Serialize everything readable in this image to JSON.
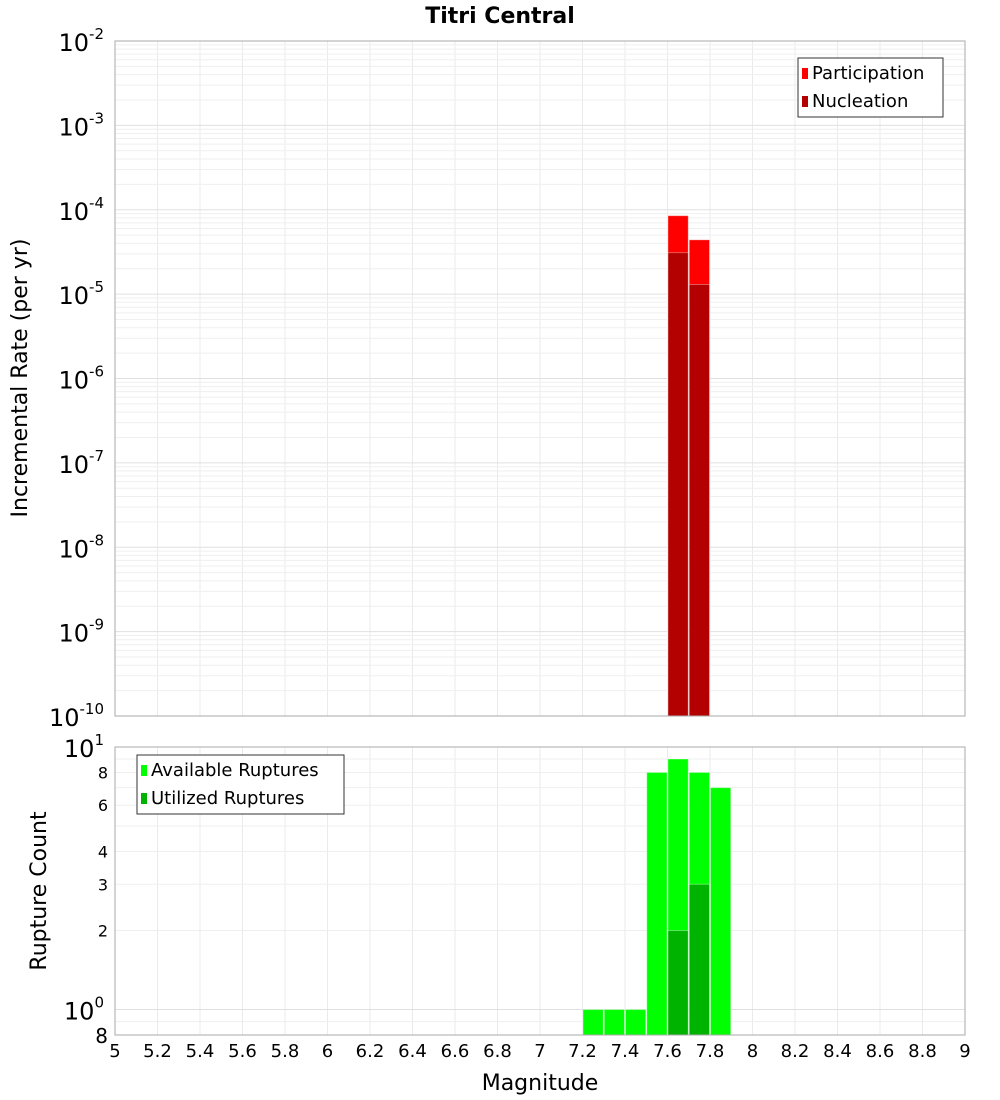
{
  "chart_data": [
    {
      "type": "bar",
      "title": "Titri Central",
      "xlabel": "",
      "ylabel": "Incremental Rate (per yr)",
      "yscale": "log",
      "xlim": [
        5,
        9
      ],
      "ylim": [
        1e-10,
        0.01
      ],
      "ytick_exponents": [
        -10,
        -9,
        -8,
        -7,
        -6,
        -5,
        -4,
        -3,
        -2
      ],
      "grid": true,
      "legend_position": "top-right",
      "bin_width": 0.1,
      "series": [
        {
          "name": "Participation",
          "color": "#ff0000",
          "x": [
            7.65,
            7.75
          ],
          "values": [
            8.5e-05,
            4.4e-05
          ]
        },
        {
          "name": "Nucleation",
          "color": "#b30000",
          "x": [
            7.65,
            7.75
          ],
          "values": [
            3.1e-05,
            1.3e-05
          ]
        }
      ]
    },
    {
      "type": "bar",
      "xlabel": "Magnitude",
      "ylabel": "Rupture Count",
      "yscale": "log",
      "xlim": [
        5,
        9
      ],
      "ylim": [
        0.8,
        10
      ],
      "xticks": [
        "5",
        "5.2",
        "5.4",
        "5.6",
        "5.8",
        "6",
        "6.2",
        "6.4",
        "6.6",
        "6.8",
        "7",
        "7.2",
        "7.4",
        "7.6",
        "7.8",
        "8",
        "8.2",
        "8.4",
        "8.6",
        "8.8",
        "9"
      ],
      "yticks_minor": [
        {
          "v": 2,
          "label": "2"
        },
        {
          "v": 3,
          "label": "3"
        },
        {
          "v": 4,
          "label": "4"
        },
        {
          "v": 6,
          "label": "6"
        },
        {
          "v": 8,
          "label": "8"
        }
      ],
      "ytick_bottom_label": "8",
      "ytick_major": [
        {
          "v": 1,
          "exp": "0"
        },
        {
          "v": 10,
          "exp": "1"
        }
      ],
      "grid": true,
      "legend_position": "top-left",
      "bin_width": 0.1,
      "series": [
        {
          "name": "Available Ruptures",
          "color": "#00ff00",
          "x": [
            7.25,
            7.35,
            7.45,
            7.55,
            7.65,
            7.75,
            7.85
          ],
          "values": [
            1,
            1,
            1,
            8,
            9,
            8,
            7
          ]
        },
        {
          "name": "Utilized Ruptures",
          "color": "#00b300",
          "x": [
            7.65,
            7.75
          ],
          "values": [
            2,
            3
          ]
        }
      ]
    }
  ]
}
